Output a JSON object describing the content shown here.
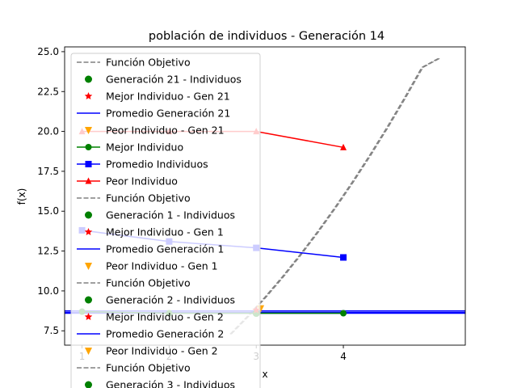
{
  "chart_data": {
    "type": "line",
    "title": "población de individuos - Generación 14",
    "xlabel": "x",
    "ylabel": "f(x)",
    "xlim": [
      0.8,
      5.4
    ],
    "ylim": [
      6.6,
      25.3
    ],
    "xticks": [
      1,
      2,
      3,
      4
    ],
    "yticks": [
      7.5,
      10.0,
      12.5,
      15.0,
      17.5,
      20.0,
      22.5,
      25.0
    ],
    "ytick_labels": [
      "7.5",
      "10.0",
      "12.5",
      "15.0",
      "17.5",
      "20.0",
      "22.5",
      "25.0"
    ],
    "grid": false,
    "legend_position": "top-left",
    "objective_function": {
      "x": [
        2.7,
        2.9,
        3.1,
        3.3,
        3.5,
        3.7,
        3.9,
        4.1,
        4.3,
        4.5,
        4.7,
        4.9,
        5.1
      ],
      "y": [
        7.29,
        8.41,
        9.61,
        10.89,
        12.25,
        13.69,
        15.21,
        16.81,
        18.49,
        20.25,
        22.09,
        24.01,
        26.01
      ]
    },
    "series": [
      {
        "name": "Mejor Individuo",
        "color": "#008000",
        "marker": "circle",
        "x": [
          1,
          2,
          3,
          4
        ],
        "y": [
          8.7,
          8.6,
          8.6,
          8.6
        ]
      },
      {
        "name": "Promedio Individuos",
        "color": "#0000ff",
        "marker": "square",
        "x": [
          1,
          2,
          3,
          4
        ],
        "y": [
          13.8,
          13.1,
          12.7,
          12.1
        ]
      },
      {
        "name": "Peor Individuo",
        "color": "#ff0000",
        "marker": "triangle",
        "x": [
          1,
          2,
          3,
          4
        ],
        "y": [
          20.0,
          20.0,
          20.0,
          19.0
        ]
      }
    ],
    "average_lines": [
      8.75,
      8.65,
      8.6
    ],
    "highlight_points": [
      {
        "x": 3.0,
        "y": 8.6,
        "color": "#008000",
        "marker": "circle"
      },
      {
        "x": 3.0,
        "y": 8.8,
        "color": "#ff0000",
        "marker": "star"
      },
      {
        "x": 3.05,
        "y": 8.9,
        "color": "#ffa500",
        "marker": "triangle-down"
      }
    ],
    "legend": [
      {
        "label": "Función Objetivo",
        "kind": "dashed",
        "color": "#808080"
      },
      {
        "label": "Generación 21 - Individuos",
        "kind": "dot",
        "color": "#008000"
      },
      {
        "label": "Mejor Individuo - Gen 21",
        "kind": "star",
        "color": "#ff0000"
      },
      {
        "label": "Promedio Generación 21",
        "kind": "line",
        "color": "#0000ff"
      },
      {
        "label": "Peor Individuo - Gen 21",
        "kind": "tri-down",
        "color": "#ffa500"
      },
      {
        "label": "Mejor Individuo",
        "kind": "line-circle",
        "color": "#008000"
      },
      {
        "label": "Promedio Individuos",
        "kind": "line-square",
        "color": "#0000ff"
      },
      {
        "label": "Peor Individuo",
        "kind": "line-triangle",
        "color": "#ff0000"
      },
      {
        "label": "Función Objetivo",
        "kind": "dashed",
        "color": "#808080"
      },
      {
        "label": "Generación 1 - Individuos",
        "kind": "dot",
        "color": "#008000"
      },
      {
        "label": "Mejor Individuo - Gen 1",
        "kind": "star",
        "color": "#ff0000"
      },
      {
        "label": "Promedio Generación 1",
        "kind": "line",
        "color": "#0000ff"
      },
      {
        "label": "Peor Individuo - Gen 1",
        "kind": "tri-down",
        "color": "#ffa500"
      },
      {
        "label": "Función Objetivo",
        "kind": "dashed",
        "color": "#808080"
      },
      {
        "label": "Generación 2 - Individuos",
        "kind": "dot",
        "color": "#008000"
      },
      {
        "label": "Mejor Individuo - Gen 2",
        "kind": "star",
        "color": "#ff0000"
      },
      {
        "label": "Promedio Generación 2",
        "kind": "line",
        "color": "#0000ff"
      },
      {
        "label": "Peor Individuo - Gen 2",
        "kind": "tri-down",
        "color": "#ffa500"
      },
      {
        "label": "Función Objetivo",
        "kind": "dashed",
        "color": "#808080"
      },
      {
        "label": "Generación 3 - Individuos",
        "kind": "dot",
        "color": "#008000"
      }
    ]
  }
}
